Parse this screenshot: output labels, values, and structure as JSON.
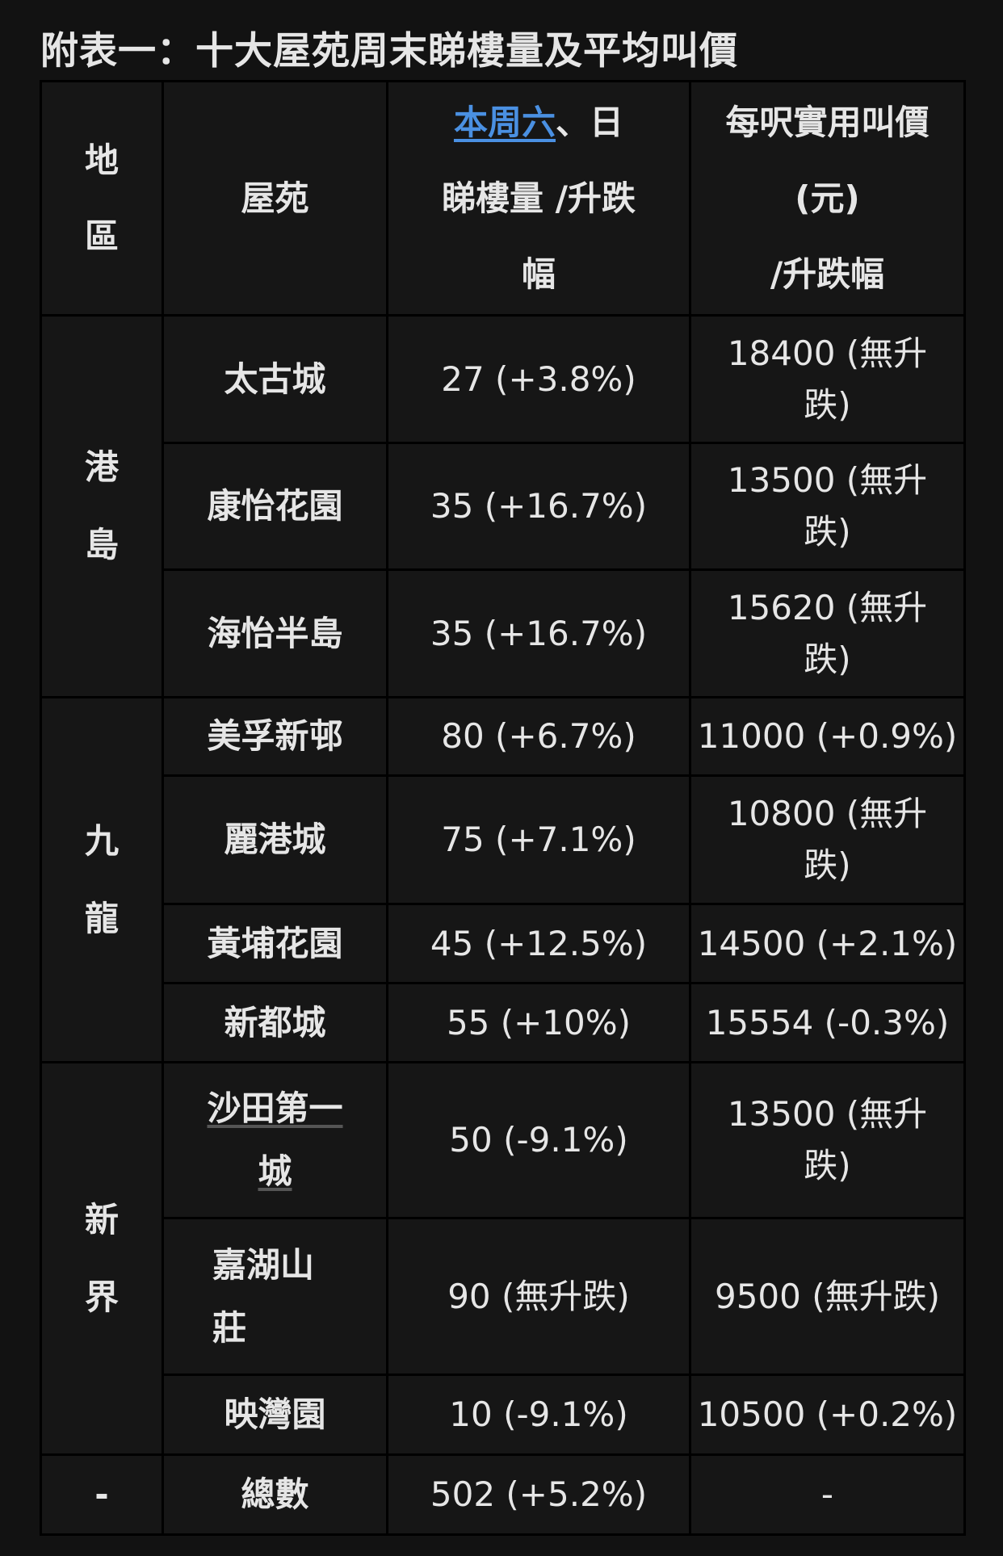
{
  "title": "附表一：十大屋苑周末睇樓量及平均叫價",
  "header": {
    "region": [
      "地",
      "區"
    ],
    "estate": "屋苑",
    "viewings_link": "本周六",
    "viewings_rest": [
      "、日",
      "睇樓量 /升跌",
      "幅"
    ],
    "price": [
      "每呎實用叫價",
      "(元)",
      "/升跌幅"
    ]
  },
  "regions": [
    {
      "label": [
        "港",
        "島"
      ]
    },
    {
      "label": [
        "九",
        "龍"
      ]
    },
    {
      "label": [
        "新",
        "界"
      ]
    },
    {
      "label": [
        "-"
      ]
    }
  ],
  "rows": [
    {
      "estate": [
        "太古城"
      ],
      "viewings": "27 (+3.8%)",
      "price": [
        "18400 (無升",
        "跌)"
      ]
    },
    {
      "estate": [
        "康怡花園"
      ],
      "viewings": "35 (+16.7%)",
      "price": [
        "13500 (無升",
        "跌)"
      ]
    },
    {
      "estate": [
        "海怡半島"
      ],
      "viewings": "35 (+16.7%)",
      "price": [
        "15620 (無升",
        "跌)"
      ]
    },
    {
      "estate": [
        "美孚新邨"
      ],
      "viewings": "80 (+6.7%)",
      "price": [
        "11000 (+0.9%)"
      ]
    },
    {
      "estate": [
        "麗港城"
      ],
      "viewings": "75 (+7.1%)",
      "price": [
        "10800 (無升",
        "跌)"
      ]
    },
    {
      "estate": [
        "黃埔花園"
      ],
      "viewings": "45 (+12.5%)",
      "price": [
        "14500 (+2.1%)"
      ]
    },
    {
      "estate": [
        "新都城"
      ],
      "viewings": "55 (+10%)",
      "price": [
        "15554 (-0.3%)"
      ]
    },
    {
      "estate": [
        "沙田第一",
        "城"
      ],
      "viewings": "50 (-9.1%)",
      "price": [
        "13500 (無升",
        "跌)"
      ]
    },
    {
      "estate": [
        "嘉湖山",
        "莊"
      ],
      "viewings": "90 (無升跌)",
      "price": [
        "9500 (無升跌)"
      ]
    },
    {
      "estate": [
        "映灣園"
      ],
      "viewings": "10 (-9.1%)",
      "price": [
        "10500 (+0.2%)"
      ]
    },
    {
      "estate": [
        "總數"
      ],
      "viewings": "502 (+5.2%)",
      "price": [
        "-"
      ]
    }
  ],
  "colors": {
    "link": "#4a90e2",
    "background": "#121212",
    "cell": "#161616",
    "text": "#e6e6e6"
  }
}
